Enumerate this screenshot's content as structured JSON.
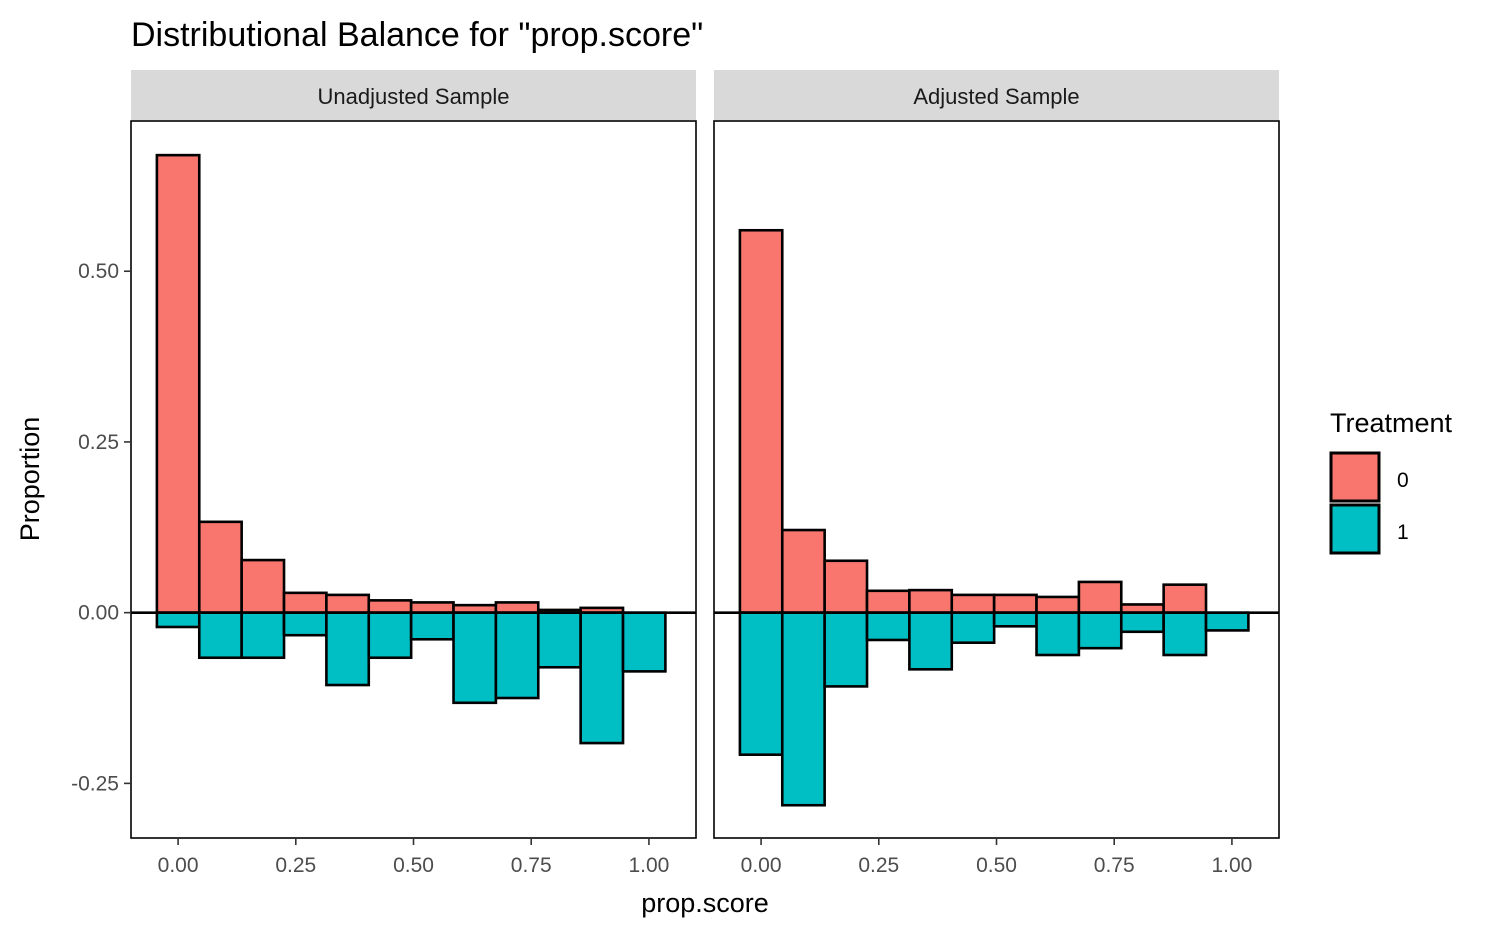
{
  "chart_data": {
    "type": "bar",
    "title": "Distributional Balance for \"prop.score\"",
    "xlabel": "prop.score",
    "ylabel": "Proportion",
    "xlim": [
      -0.1,
      1.1
    ],
    "ylim": [
      -0.33,
      0.72
    ],
    "x_ticks": [
      0.0,
      0.25,
      0.5,
      0.75,
      1.0
    ],
    "x_tick_labels": [
      "0.00",
      "0.25",
      "0.50",
      "0.75",
      "1.00"
    ],
    "y_ticks": [
      -0.25,
      0.0,
      0.25,
      0.5
    ],
    "y_tick_labels": [
      "-0.25",
      "0.00",
      "0.25",
      "0.50"
    ],
    "grid": false,
    "legend": {
      "title": "Treatment",
      "placement": "right",
      "entries": [
        {
          "label": "0",
          "color": "#F8766D"
        },
        {
          "label": "1",
          "color": "#00BFC4"
        }
      ]
    },
    "bin_edges": [
      -0.045,
      0.045,
      0.135,
      0.225,
      0.315,
      0.405,
      0.495,
      0.585,
      0.675,
      0.765,
      0.855,
      0.945,
      1.035
    ],
    "panels": [
      {
        "name": "Unadjusted Sample",
        "series": [
          {
            "name": "0",
            "values": [
              0.67,
              0.133,
              0.077,
              0.029,
              0.026,
              0.018,
              0.015,
              0.011,
              0.015,
              0.004,
              0.007,
              0.0
            ]
          },
          {
            "name": "1",
            "values": [
              -0.021,
              -0.066,
              -0.066,
              -0.033,
              -0.106,
              -0.066,
              -0.039,
              -0.132,
              -0.125,
              -0.08,
              -0.191,
              -0.086
            ]
          }
        ]
      },
      {
        "name": "Adjusted Sample",
        "series": [
          {
            "name": "0",
            "values": [
              0.56,
              0.121,
              0.076,
              0.032,
              0.033,
              0.026,
              0.026,
              0.023,
              0.045,
              0.012,
              0.041,
              0.0
            ]
          },
          {
            "name": "1",
            "values": [
              -0.208,
              -0.282,
              -0.108,
              -0.04,
              -0.083,
              -0.044,
              -0.02,
              -0.062,
              -0.052,
              -0.028,
              -0.062,
              -0.026
            ]
          }
        ]
      }
    ]
  }
}
